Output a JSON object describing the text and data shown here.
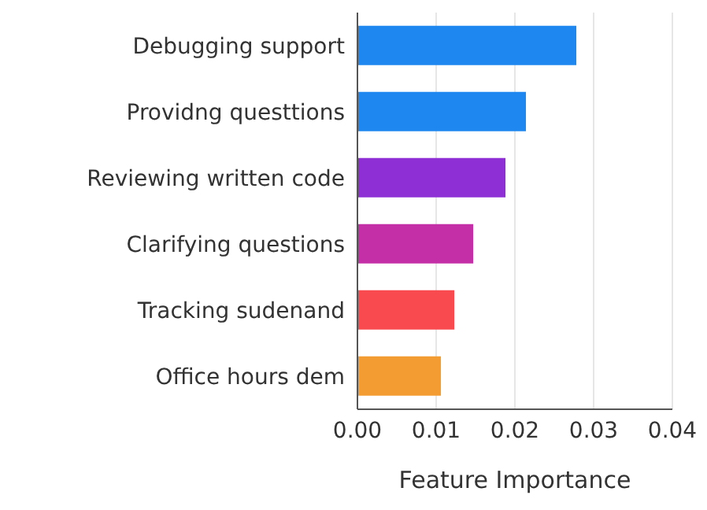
{
  "chart_data": {
    "type": "bar",
    "orientation": "horizontal",
    "xlabel": "Feature Importance",
    "categories": [
      "Debugging support",
      "Providng questtions",
      "Reviewing written code",
      "Clarifying questions",
      "Tracking sudenand",
      "Office hours dem"
    ],
    "values": [
      0.0278,
      0.0214,
      0.0188,
      0.0147,
      0.0123,
      0.0106
    ],
    "colors": [
      "#1e88f0",
      "#1e88f0",
      "#8e2fd6",
      "#c42ea6",
      "#f84a4f",
      "#f39c31"
    ],
    "xlim": [
      0,
      0.04
    ],
    "xticks": [
      {
        "value": 0,
        "label": "0.00"
      },
      {
        "value": 0.01,
        "label": "0.01"
      },
      {
        "value": 0.02,
        "label": "0.02"
      },
      {
        "value": 0.03,
        "label": "0.03"
      },
      {
        "value": 0.04,
        "label": "0.04"
      }
    ],
    "grid": "x",
    "legend": false
  }
}
